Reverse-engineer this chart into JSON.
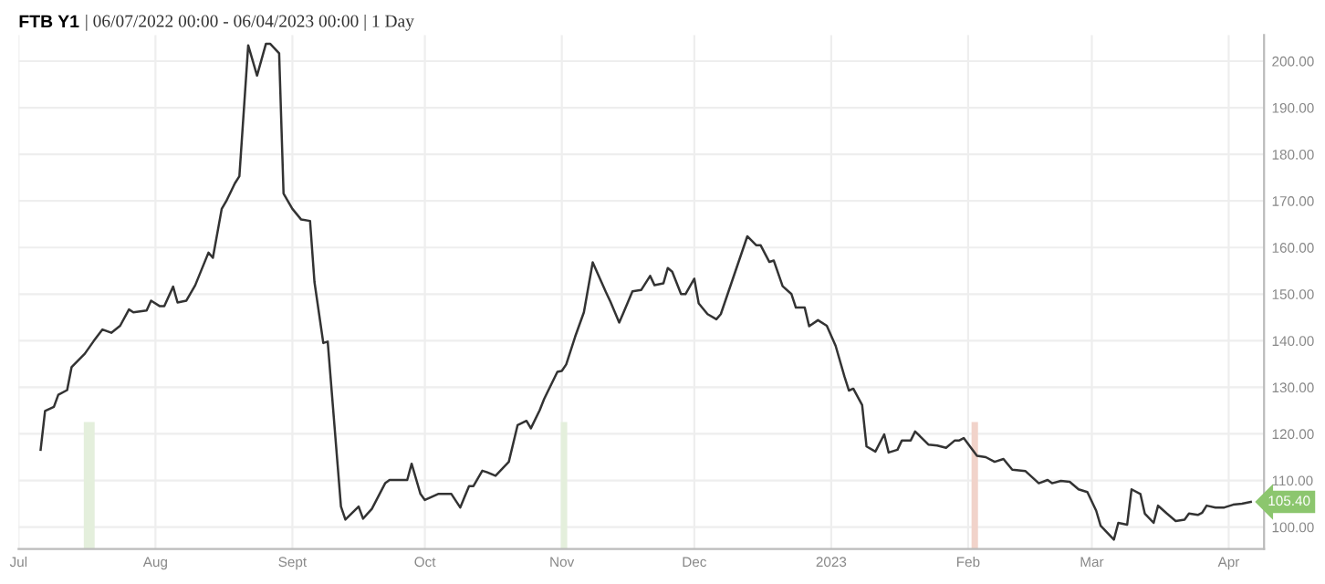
{
  "chart_data": {
    "type": "line",
    "title": "FTB Y1",
    "subtitle": "| 06/07/2022 00:00 - 06/04/2023 00:00 | 1 Day",
    "x": [
      "2022-07-06",
      "2022-07-07",
      "2022-07-09",
      "2022-07-10",
      "2022-07-12",
      "2022-07-13",
      "2022-07-16",
      "2022-07-18",
      "2022-07-20",
      "2022-07-22",
      "2022-07-24",
      "2022-07-26",
      "2022-07-27",
      "2022-07-30",
      "2022-07-31",
      "2022-08-02",
      "2022-08-03",
      "2022-08-05",
      "2022-08-06",
      "2022-08-08",
      "2022-08-10",
      "2022-08-13",
      "2022-08-14",
      "2022-08-16",
      "2022-08-17",
      "2022-08-19",
      "2022-08-20",
      "2022-08-22",
      "2022-08-24",
      "2022-08-26",
      "2022-08-27",
      "2022-08-29",
      "2022-08-30",
      "2022-09-01",
      "2022-09-03",
      "2022-09-05",
      "2022-09-06",
      "2022-09-08",
      "2022-09-09",
      "2022-09-12",
      "2022-09-13",
      "2022-09-16",
      "2022-09-17",
      "2022-09-19",
      "2022-09-22",
      "2022-09-23",
      "2022-09-27",
      "2022-09-28",
      "2022-09-30",
      "2022-10-01",
      "2022-10-04",
      "2022-10-07",
      "2022-10-09",
      "2022-10-11",
      "2022-10-12",
      "2022-10-14",
      "2022-10-15",
      "2022-10-17",
      "2022-10-20",
      "2022-10-22",
      "2022-10-24",
      "2022-10-25",
      "2022-10-27",
      "2022-10-28",
      "2022-10-31",
      "2022-11-01",
      "2022-11-02",
      "2022-11-04",
      "2022-11-06",
      "2022-11-08",
      "2022-11-11",
      "2022-11-12",
      "2022-11-14",
      "2022-11-15",
      "2022-11-17",
      "2022-11-19",
      "2022-11-21",
      "2022-11-22",
      "2022-11-24",
      "2022-11-25",
      "2022-11-26",
      "2022-11-28",
      "2022-11-29",
      "2022-12-01",
      "2022-12-02",
      "2022-12-04",
      "2022-12-06",
      "2022-12-07",
      "2022-12-13",
      "2022-12-15",
      "2022-12-16",
      "2022-12-18",
      "2022-12-19",
      "2022-12-21",
      "2022-12-23",
      "2022-12-24",
      "2022-12-26",
      "2022-12-27",
      "2022-12-29",
      "2022-12-31",
      "2023-01-02",
      "2023-01-04",
      "2023-01-05",
      "2023-01-06",
      "2023-01-08",
      "2023-01-09",
      "2023-01-11",
      "2023-01-13",
      "2023-01-14",
      "2023-01-16",
      "2023-01-17",
      "2023-01-19",
      "2023-01-20",
      "2023-01-21",
      "2023-01-23",
      "2023-01-25",
      "2023-01-27",
      "2023-01-29",
      "2023-01-30",
      "2023-01-31",
      "2023-02-03",
      "2023-02-05",
      "2023-02-07",
      "2023-02-09",
      "2023-02-11",
      "2023-02-14",
      "2023-02-17",
      "2023-02-19",
      "2023-02-20",
      "2023-02-22",
      "2023-02-24",
      "2023-02-26",
      "2023-02-28",
      "2023-03-02",
      "2023-03-03",
      "2023-03-06",
      "2023-03-07",
      "2023-03-09",
      "2023-03-10",
      "2023-03-12",
      "2023-03-13",
      "2023-03-15",
      "2023-03-16",
      "2023-03-18",
      "2023-03-20",
      "2023-03-22",
      "2023-03-23",
      "2023-03-25",
      "2023-03-26",
      "2023-03-27",
      "2023-03-29",
      "2023-03-31",
      "2023-04-02",
      "2023-04-04",
      "2023-04-06"
    ],
    "series": [
      {
        "color": "#333333",
        "values": [
          116.6,
          124.9,
          125.8,
          128.4,
          129.4,
          134.3,
          137.2,
          139.9,
          142.4,
          141.7,
          143.2,
          146.7,
          146.1,
          146.5,
          148.6,
          147.4,
          147.4,
          151.6,
          148.2,
          148.6,
          151.9,
          158.9,
          157.8,
          168.3,
          169.9,
          173.8,
          175.3,
          203.4,
          196.9,
          203.7,
          203.7,
          201.7,
          171.6,
          168.3,
          166.0,
          165.7,
          152.6,
          139.5,
          139.8,
          104.4,
          101.6,
          104.4,
          101.8,
          103.9,
          109.4,
          110.1,
          110.1,
          113.6,
          107.1,
          105.8,
          107.1,
          107.1,
          104.2,
          108.8,
          108.8,
          112.1,
          111.8,
          111.0,
          114.0,
          121.9,
          122.8,
          121.2,
          125.1,
          127.5,
          133.3,
          133.5,
          134.9,
          140.8,
          146.1,
          156.8,
          150.4,
          148.4,
          143.9,
          146.1,
          150.6,
          150.9,
          153.9,
          151.9,
          152.3,
          155.6,
          154.8,
          150.0,
          150.0,
          153.3,
          148.0,
          145.7,
          144.6,
          145.7,
          162.4,
          160.5,
          160.5,
          156.9,
          157.2,
          151.7,
          150.0,
          147.1,
          147.1,
          143.1,
          144.4,
          143.2,
          138.9,
          132.3,
          129.3,
          129.7,
          126.2,
          117.3,
          116.2,
          119.9,
          116.0,
          116.6,
          118.6,
          118.6,
          120.5,
          119.6,
          117.7,
          117.5,
          117.0,
          118.6,
          118.6,
          119.1,
          115.3,
          115.0,
          114.0,
          114.6,
          112.3,
          112.0,
          109.4,
          110.1,
          109.4,
          109.9,
          109.7,
          108.1,
          107.5,
          103.5,
          100.3,
          97.3,
          100.9,
          100.5,
          108.1,
          107.1,
          102.9,
          100.9,
          104.6,
          102.9,
          101.3,
          101.6,
          102.9,
          102.6,
          103.1,
          104.6,
          104.2,
          104.2,
          104.8,
          105.0,
          105.4
        ]
      }
    ],
    "xlim": [
      "2022-07-01",
      "2023-04-09"
    ],
    "xticks": [
      {
        "value": "2022-07-01",
        "label": "Jul"
      },
      {
        "value": "2022-08-01",
        "label": "Aug"
      },
      {
        "value": "2022-09-01",
        "label": "Sept"
      },
      {
        "value": "2022-10-01",
        "label": "Oct"
      },
      {
        "value": "2022-11-01",
        "label": "Nov"
      },
      {
        "value": "2022-12-01",
        "label": "Dec"
      },
      {
        "value": "2023-01-01",
        "label": "2023"
      },
      {
        "value": "2023-02-01",
        "label": "Feb"
      },
      {
        "value": "2023-03-01",
        "label": "Mar"
      },
      {
        "value": "2023-04-01",
        "label": "Apr"
      }
    ],
    "ylim": [
      95.3,
      205.6
    ],
    "yticks": [
      {
        "value": 100,
        "label": "100.00"
      },
      {
        "value": 110,
        "label": "110.00"
      },
      {
        "value": 120,
        "label": "120.00"
      },
      {
        "value": 130,
        "label": "130.00"
      },
      {
        "value": 140,
        "label": "140.00"
      },
      {
        "value": 150,
        "label": "150.00"
      },
      {
        "value": 160,
        "label": "160.00"
      },
      {
        "value": 170,
        "label": "170.00"
      },
      {
        "value": 180,
        "label": "180.00"
      },
      {
        "value": 190,
        "label": "190.00"
      },
      {
        "value": 200,
        "label": "200.00"
      }
    ],
    "bands": [
      {
        "axis": "x",
        "from": "2022-07-16",
        "to": "2022-07-18",
        "color": "#e4efdc"
      },
      {
        "axis": "x",
        "from": "2022-11-01",
        "to": "2022-11-02",
        "color": "#e4efdc"
      },
      {
        "axis": "x",
        "from": "2023-02-02",
        "to": "2023-02-03",
        "color": "#f1d3ca"
      }
    ],
    "annotations": [
      {
        "text": "105.40",
        "x": "2023-04-06",
        "y": 105.4
      }
    ],
    "grid": true,
    "marker": "none",
    "line_style": "solid"
  }
}
